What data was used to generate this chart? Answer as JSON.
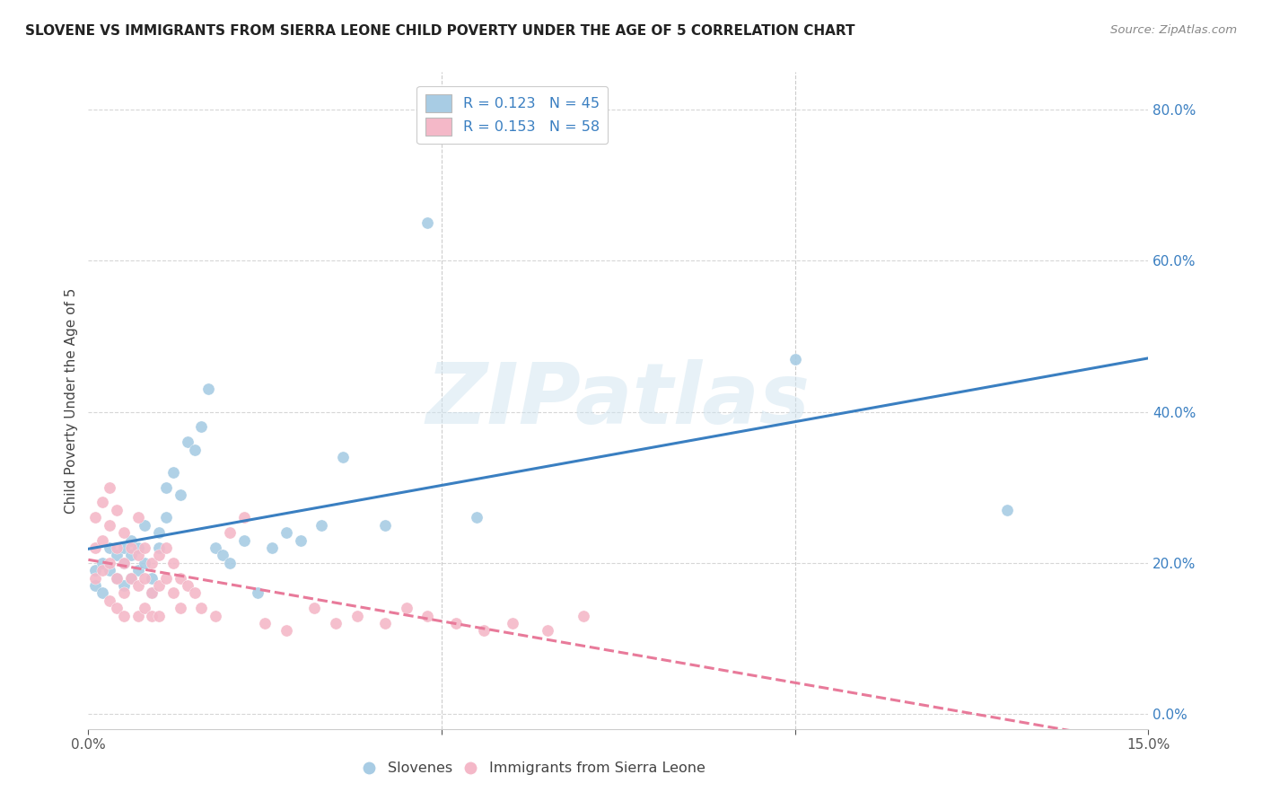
{
  "title": "SLOVENE VS IMMIGRANTS FROM SIERRA LEONE CHILD POVERTY UNDER THE AGE OF 5 CORRELATION CHART",
  "source": "Source: ZipAtlas.com",
  "ylabel": "Child Poverty Under the Age of 5",
  "legend1_label": "R = 0.123   N = 45",
  "legend2_label": "R = 0.153   N = 58",
  "legend_bottom1": "Slovenes",
  "legend_bottom2": "Immigrants from Sierra Leone",
  "blue_color": "#a8cce4",
  "pink_color": "#f4b8c8",
  "blue_line_color": "#3a7fc1",
  "pink_line_color": "#e87a9a",
  "watermark_text": "ZIPatlas",
  "xmin": 0.0,
  "xmax": 0.15,
  "ymin": -0.02,
  "ymax": 0.85,
  "slovene_x": [
    0.001,
    0.001,
    0.002,
    0.002,
    0.003,
    0.003,
    0.004,
    0.004,
    0.005,
    0.005,
    0.005,
    0.006,
    0.006,
    0.006,
    0.007,
    0.007,
    0.008,
    0.008,
    0.009,
    0.009,
    0.01,
    0.01,
    0.011,
    0.011,
    0.012,
    0.013,
    0.014,
    0.015,
    0.016,
    0.017,
    0.018,
    0.019,
    0.02,
    0.022,
    0.024,
    0.026,
    0.028,
    0.03,
    0.033,
    0.036,
    0.042,
    0.048,
    0.055,
    0.1,
    0.13
  ],
  "slovene_y": [
    0.17,
    0.19,
    0.16,
    0.2,
    0.19,
    0.22,
    0.18,
    0.21,
    0.17,
    0.2,
    0.22,
    0.18,
    0.21,
    0.23,
    0.19,
    0.22,
    0.2,
    0.25,
    0.18,
    0.16,
    0.22,
    0.24,
    0.3,
    0.26,
    0.32,
    0.29,
    0.36,
    0.35,
    0.38,
    0.43,
    0.22,
    0.21,
    0.2,
    0.23,
    0.16,
    0.22,
    0.24,
    0.23,
    0.25,
    0.34,
    0.25,
    0.65,
    0.26,
    0.47,
    0.27
  ],
  "sierra_x": [
    0.001,
    0.001,
    0.001,
    0.002,
    0.002,
    0.002,
    0.003,
    0.003,
    0.003,
    0.003,
    0.004,
    0.004,
    0.004,
    0.004,
    0.005,
    0.005,
    0.005,
    0.005,
    0.006,
    0.006,
    0.007,
    0.007,
    0.007,
    0.007,
    0.008,
    0.008,
    0.008,
    0.009,
    0.009,
    0.009,
    0.01,
    0.01,
    0.01,
    0.011,
    0.011,
    0.012,
    0.012,
    0.013,
    0.013,
    0.014,
    0.015,
    0.016,
    0.018,
    0.02,
    0.022,
    0.025,
    0.028,
    0.032,
    0.035,
    0.038,
    0.042,
    0.045,
    0.048,
    0.052,
    0.056,
    0.06,
    0.065,
    0.07
  ],
  "sierra_y": [
    0.26,
    0.22,
    0.18,
    0.28,
    0.23,
    0.19,
    0.3,
    0.25,
    0.2,
    0.15,
    0.27,
    0.22,
    0.18,
    0.14,
    0.24,
    0.2,
    0.16,
    0.13,
    0.22,
    0.18,
    0.26,
    0.21,
    0.17,
    0.13,
    0.22,
    0.18,
    0.14,
    0.2,
    0.16,
    0.13,
    0.21,
    0.17,
    0.13,
    0.22,
    0.18,
    0.2,
    0.16,
    0.18,
    0.14,
    0.17,
    0.16,
    0.14,
    0.13,
    0.24,
    0.26,
    0.12,
    0.11,
    0.14,
    0.12,
    0.13,
    0.12,
    0.14,
    0.13,
    0.12,
    0.11,
    0.12,
    0.11,
    0.13
  ],
  "ytick_vals": [
    0.0,
    0.2,
    0.4,
    0.6,
    0.8
  ],
  "ytick_labels": [
    "0.0%",
    "20.0%",
    "40.0%",
    "60.0%",
    "80.0%"
  ]
}
